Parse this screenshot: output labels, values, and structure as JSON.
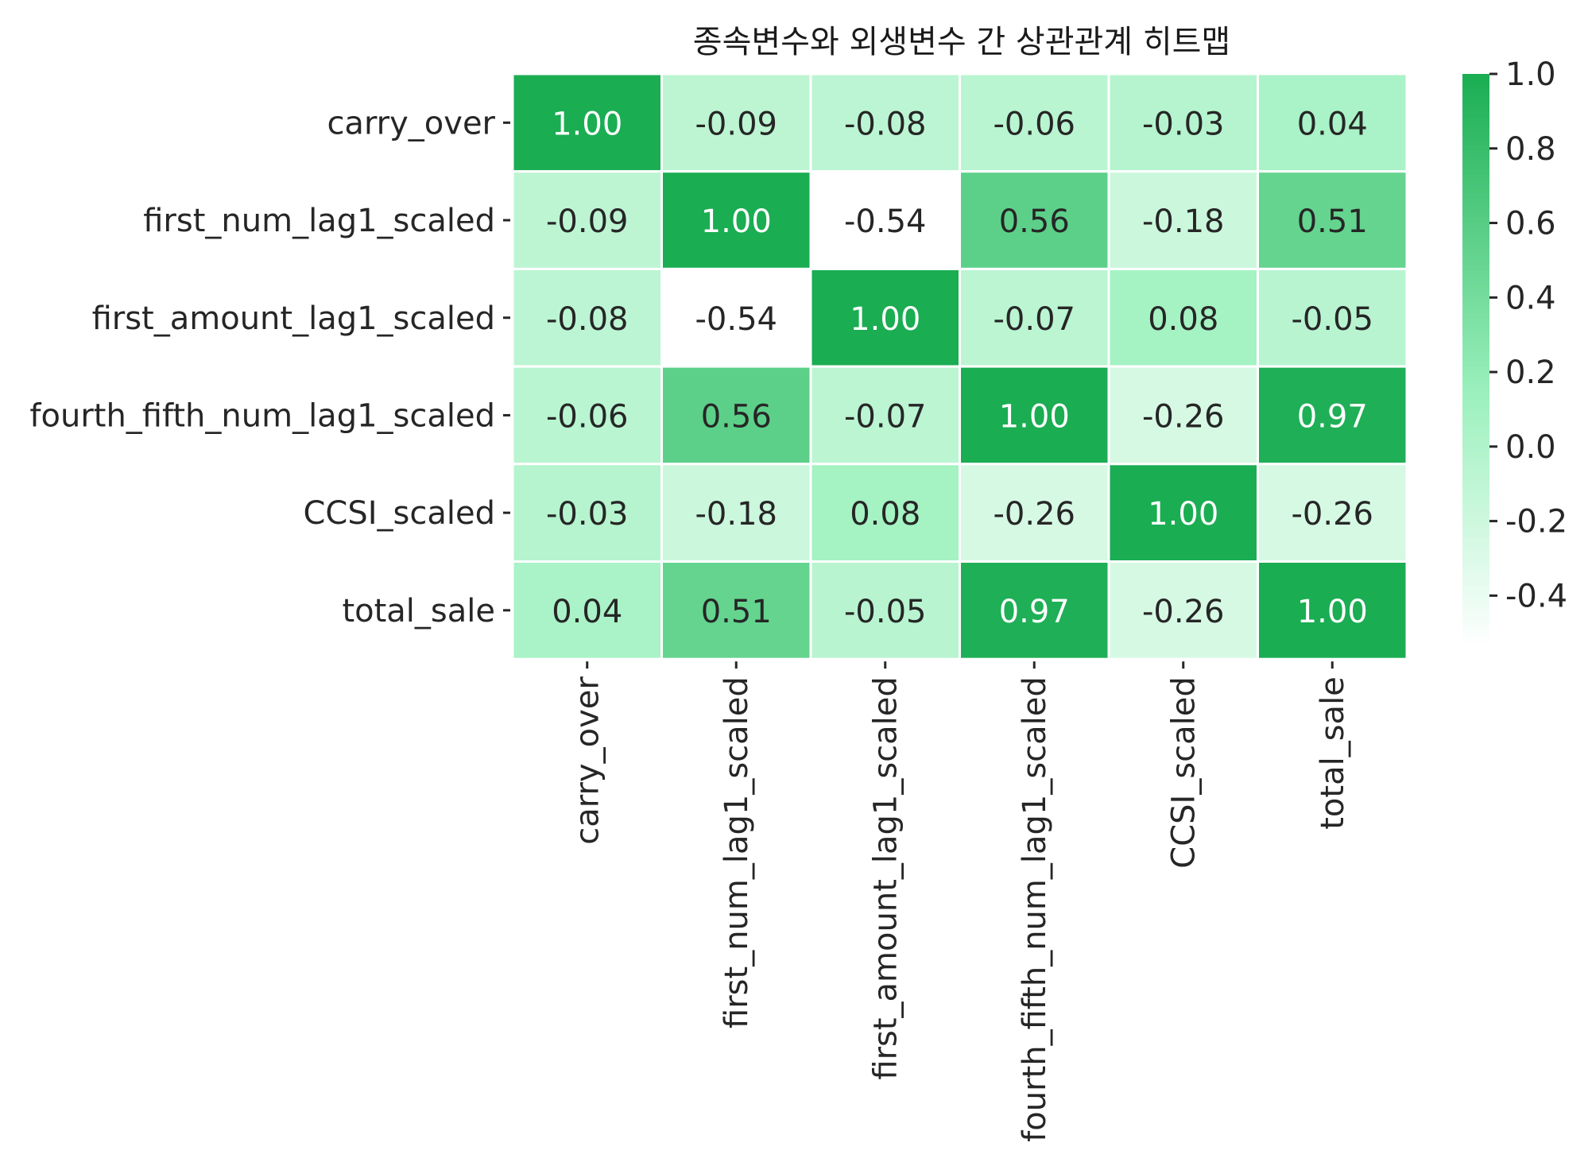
{
  "chart_data": {
    "type": "heatmap",
    "title": "종속변수와 외생변수 간 상관관계 히트맵",
    "rows": [
      "carry_over",
      "first_num_lag1_scaled",
      "first_amount_lag1_scaled",
      "fourth_fifth_num_lag1_scaled",
      "CCSI_scaled",
      "total_sale"
    ],
    "columns": [
      "carry_over",
      "first_num_lag1_scaled",
      "first_amount_lag1_scaled",
      "fourth_fifth_num_lag1_scaled",
      "CCSI_scaled",
      "total_sale"
    ],
    "values": [
      [
        1.0,
        -0.09,
        -0.08,
        -0.06,
        -0.03,
        0.04
      ],
      [
        -0.09,
        1.0,
        -0.54,
        0.56,
        -0.18,
        0.51
      ],
      [
        -0.08,
        -0.54,
        1.0,
        -0.07,
        0.08,
        -0.05
      ],
      [
        -0.06,
        0.56,
        -0.07,
        1.0,
        -0.26,
        0.97
      ],
      [
        -0.03,
        -0.18,
        0.08,
        -0.26,
        1.0,
        -0.26
      ],
      [
        0.04,
        0.51,
        -0.05,
        0.97,
        -0.26,
        1.0
      ]
    ],
    "value_format": "0.00",
    "colorbar": {
      "min": -0.54,
      "max": 1.0,
      "ticks": [
        1.0,
        0.8,
        0.6,
        0.4,
        0.2,
        0.0,
        -0.2,
        -0.4
      ],
      "tick_labels": [
        "1.0",
        "0.8",
        "0.6",
        "0.4",
        "0.2",
        "0.0",
        "-0.2",
        "-0.4"
      ]
    },
    "colors": {
      "low": "#ffffff",
      "mid": "#9af0bc",
      "high": "#1aad52",
      "text_dark": "#262626",
      "text_light": "#ffffff",
      "grid": "#ffffff"
    }
  }
}
